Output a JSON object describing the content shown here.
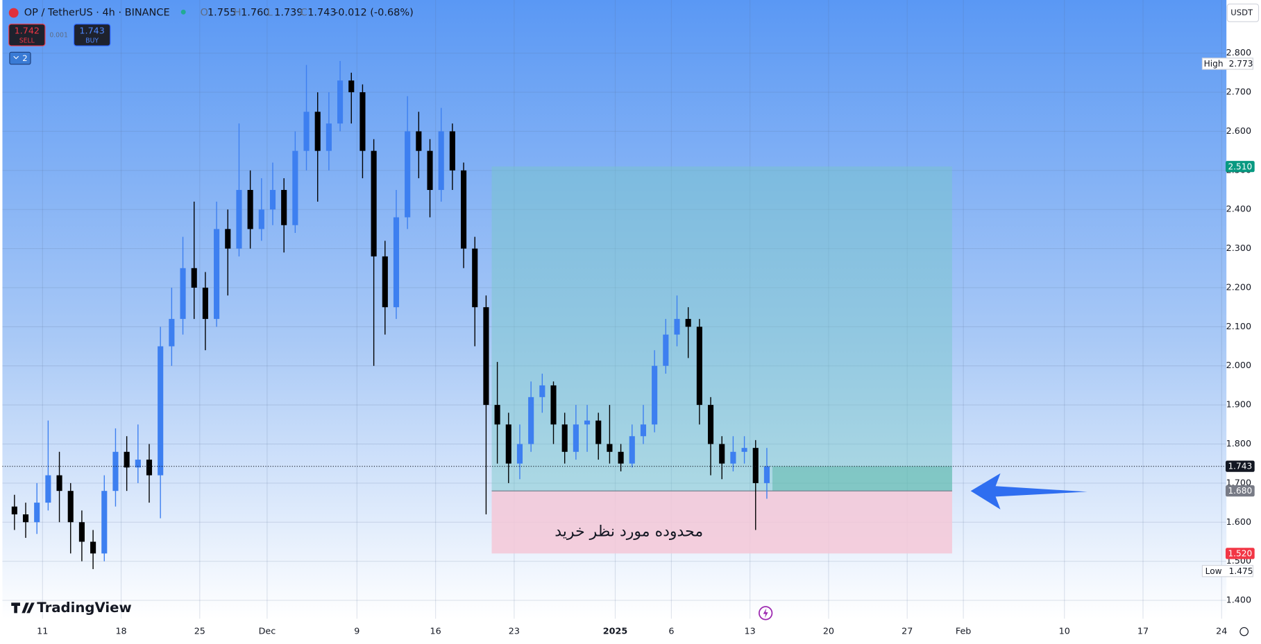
{
  "header": {
    "symbol": "OP / TetherUS · 4h · BINANCE",
    "ohlc": [
      {
        "key": "O",
        "value": "1.755"
      },
      {
        "key": "H",
        "value": "1.760"
      },
      {
        "key": "L",
        "value": "1.739"
      },
      {
        "key": "C",
        "value": "1.743"
      }
    ],
    "change": "-0.012 (-0.68%)",
    "sell": {
      "price": "1.742",
      "label": "SELL"
    },
    "spread": "0.001",
    "buy": {
      "price": "1.743",
      "label": "BUY"
    },
    "indicators": "2",
    "currency": "USDT"
  },
  "logo": "TradingView",
  "annotation": "محدوده مورد نظر خرید",
  "chart_data": {
    "type": "candlestick",
    "up_color": "#3d7ff0",
    "down_color": "#000000",
    "grid": true,
    "x": [
      "Nov 8",
      "Nov 9",
      "Nov 10",
      "Nov 11",
      "Nov 12",
      "Nov 13",
      "Nov 14",
      "Nov 15",
      "Nov 16",
      "Nov 17",
      "Nov 18",
      "Nov 19",
      "Nov 20",
      "Nov 21",
      "Nov 22",
      "Nov 23",
      "Nov 24",
      "Nov 25",
      "Nov 26",
      "Nov 27",
      "Nov 28",
      "Nov 29",
      "Nov 30",
      "Dec 1",
      "Dec 2",
      "Dec 3",
      "Dec 4",
      "Dec 5",
      "Dec 6",
      "Dec 7",
      "Dec 8",
      "Dec 9",
      "Dec 10",
      "Dec 11",
      "Dec 12",
      "Dec 13",
      "Dec 14",
      "Dec 15",
      "Dec 16",
      "Dec 17",
      "Dec 18",
      "Dec 19",
      "Dec 20",
      "Dec 21",
      "Dec 22",
      "Dec 23",
      "Dec 24",
      "Dec 25",
      "Dec 26",
      "Dec 27",
      "Dec 28",
      "Dec 29",
      "Dec 30",
      "Dec 31",
      "Jan 1",
      "Jan 2",
      "Jan 3",
      "Jan 4",
      "Jan 5",
      "Jan 6",
      "Jan 7",
      "Jan 8",
      "Jan 9",
      "Jan 10",
      "Jan 11",
      "Jan 12",
      "Jan 13",
      "Jan 14"
    ],
    "open": [
      1.64,
      1.62,
      1.6,
      1.65,
      1.72,
      1.68,
      1.6,
      1.55,
      1.52,
      1.68,
      1.78,
      1.74,
      1.76,
      1.72,
      2.05,
      2.12,
      2.25,
      2.2,
      2.12,
      2.35,
      2.3,
      2.45,
      2.35,
      2.4,
      2.45,
      2.36,
      2.55,
      2.65,
      2.55,
      2.62,
      2.73,
      2.7,
      2.55,
      2.28,
      2.15,
      2.38,
      2.6,
      2.55,
      2.45,
      2.6,
      2.5,
      2.3,
      2.15,
      1.9,
      1.85,
      1.75,
      1.8,
      1.92,
      1.95,
      1.85,
      1.78,
      1.85,
      1.86,
      1.8,
      1.78,
      1.75,
      1.82,
      1.85,
      2.0,
      2.08,
      2.12,
      2.1,
      1.9,
      1.8,
      1.75,
      1.78,
      1.79,
      1.7
    ],
    "high": [
      1.67,
      1.65,
      1.7,
      1.86,
      1.78,
      1.7,
      1.63,
      1.58,
      1.72,
      1.84,
      1.82,
      1.85,
      1.8,
      2.1,
      2.2,
      2.33,
      2.42,
      2.24,
      2.42,
      2.4,
      2.62,
      2.5,
      2.48,
      2.52,
      2.48,
      2.6,
      2.77,
      2.7,
      2.7,
      2.78,
      2.75,
      2.72,
      2.58,
      2.32,
      2.45,
      2.69,
      2.65,
      2.58,
      2.66,
      2.62,
      2.52,
      2.33,
      2.18,
      2.01,
      1.88,
      1.85,
      1.96,
      1.98,
      1.96,
      1.88,
      1.9,
      1.9,
      1.88,
      1.9,
      1.8,
      1.85,
      1.9,
      2.04,
      2.12,
      2.18,
      2.15,
      2.12,
      1.92,
      1.82,
      1.82,
      1.82,
      1.81,
      1.79
    ],
    "low": [
      1.58,
      1.56,
      1.57,
      1.63,
      1.6,
      1.52,
      1.5,
      1.48,
      1.5,
      1.64,
      1.68,
      1.7,
      1.65,
      1.61,
      2.0,
      2.08,
      2.12,
      2.04,
      2.1,
      2.18,
      2.28,
      2.3,
      2.32,
      2.36,
      2.29,
      2.34,
      2.5,
      2.42,
      2.5,
      2.6,
      2.62,
      2.48,
      2.0,
      2.08,
      2.12,
      2.35,
      2.48,
      2.38,
      2.42,
      2.45,
      2.25,
      2.05,
      1.62,
      1.75,
      1.7,
      1.71,
      1.78,
      1.88,
      1.8,
      1.75,
      1.76,
      1.78,
      1.76,
      1.75,
      1.73,
      1.74,
      1.8,
      1.83,
      1.98,
      2.05,
      2.02,
      1.85,
      1.72,
      1.71,
      1.73,
      1.75,
      1.58,
      1.66
    ],
    "close": [
      1.62,
      1.6,
      1.65,
      1.72,
      1.68,
      1.6,
      1.55,
      1.52,
      1.68,
      1.78,
      1.74,
      1.76,
      1.72,
      2.05,
      2.12,
      2.25,
      2.2,
      2.12,
      2.35,
      2.3,
      2.45,
      2.35,
      2.4,
      2.45,
      2.36,
      2.55,
      2.65,
      2.55,
      2.62,
      2.73,
      2.7,
      2.55,
      2.28,
      2.15,
      2.38,
      2.6,
      2.55,
      2.45,
      2.6,
      2.5,
      2.3,
      2.15,
      1.9,
      1.85,
      1.75,
      1.8,
      1.92,
      1.95,
      1.85,
      1.78,
      1.85,
      1.86,
      1.8,
      1.78,
      1.75,
      1.82,
      1.85,
      2.0,
      2.08,
      2.12,
      2.1,
      1.9,
      1.8,
      1.75,
      1.78,
      1.79,
      1.7,
      1.743
    ],
    "xlim": [
      "Nov 8",
      "Feb 25"
    ],
    "xticks": [
      {
        "value": "Nov 11",
        "label": "11"
      },
      {
        "value": "Nov 18",
        "label": "18"
      },
      {
        "value": "Nov 25",
        "label": "25"
      },
      {
        "value": "Dec 1",
        "label": "Dec"
      },
      {
        "value": "Dec 9",
        "label": "9"
      },
      {
        "value": "Dec 16",
        "label": "16"
      },
      {
        "value": "Dec 23",
        "label": "23"
      },
      {
        "value": "Jan 1",
        "label": "2025"
      },
      {
        "value": "Jan 6",
        "label": "6"
      },
      {
        "value": "Jan 13",
        "label": "13"
      },
      {
        "value": "Jan 20",
        "label": "20"
      },
      {
        "value": "Jan 27",
        "label": "27"
      },
      {
        "value": "Feb 1",
        "label": "Feb"
      },
      {
        "value": "Feb 10",
        "label": "10"
      },
      {
        "value": "Feb 17",
        "label": "17"
      },
      {
        "value": "Feb 24",
        "label": "24"
      }
    ],
    "ylim": [
      1.353,
      2.936
    ],
    "yticks": [
      {
        "value": 1.4,
        "label": "1.400"
      },
      {
        "value": 1.5,
        "label": "1.500"
      },
      {
        "value": 1.6,
        "label": "1.600"
      },
      {
        "value": 1.7,
        "label": "1.700"
      },
      {
        "value": 1.8,
        "label": "1.800"
      },
      {
        "value": 1.9,
        "label": "1.900"
      },
      {
        "value": 2.0,
        "label": "2.000"
      },
      {
        "value": 2.1,
        "label": "2.100"
      },
      {
        "value": 2.2,
        "label": "2.200"
      },
      {
        "value": 2.3,
        "label": "2.300"
      },
      {
        "value": 2.4,
        "label": "2.400"
      },
      {
        "value": 2.5,
        "label": "2.500"
      },
      {
        "value": 2.6,
        "label": "2.600"
      },
      {
        "value": 2.7,
        "label": "2.700"
      },
      {
        "value": 2.8,
        "label": "2.800"
      }
    ],
    "last_price": 1.743,
    "price_markers": [
      {
        "label": "High",
        "value": 2.773
      },
      {
        "label": "Low",
        "value": 1.475
      }
    ],
    "position": {
      "start": "Dec 21",
      "end": "Jan 31",
      "target": {
        "value": 2.51,
        "label": "2.510",
        "color": "#089981"
      },
      "entry": {
        "value": 1.68,
        "label": "1.680",
        "color": "#787b86"
      },
      "stop": {
        "value": 1.52,
        "label": "1.520",
        "color": "#f23645"
      }
    }
  }
}
